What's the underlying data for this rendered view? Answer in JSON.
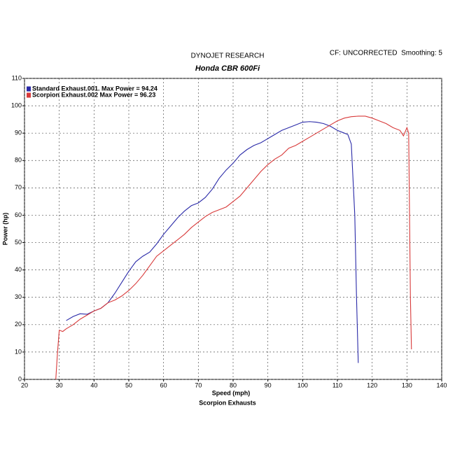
{
  "chart_data": {
    "type": "line",
    "title": "DYNOJET RESEARCH",
    "subtitle": "Honda CBR 600Fi",
    "annotation": "CF: UNCORRECTED  Smoothing: 5",
    "x_label": "Speed (mph)",
    "x_sublabel": "Scorpion Exhausts",
    "y_label": "Power (hp)",
    "xlim": [
      20,
      140
    ],
    "ylim": [
      0,
      110
    ],
    "xticks": [
      20,
      30,
      40,
      50,
      60,
      70,
      80,
      90,
      100,
      110,
      120,
      130,
      140
    ],
    "yticks": [
      0,
      10,
      20,
      30,
      40,
      50,
      60,
      70,
      80,
      90,
      100,
      110
    ],
    "grid": true,
    "legend": "top-left",
    "series": [
      {
        "name": "Standard Exhaust.001. Max Power = 94.24",
        "color": "#2a2aa8",
        "x": [
          32,
          34,
          36,
          38,
          40,
          42,
          44,
          46,
          48,
          50,
          52,
          54,
          56,
          58,
          60,
          62,
          64,
          66,
          68,
          70,
          72,
          74,
          76,
          78,
          80,
          82,
          84,
          86,
          88,
          90,
          92,
          94,
          96,
          98,
          100,
          102,
          104,
          106,
          108,
          110,
          112,
          113,
          114,
          115,
          115.5,
          116
        ],
        "values": [
          21.5,
          23,
          24,
          23.8,
          25,
          26,
          28,
          31.5,
          35.5,
          39.5,
          43,
          45,
          46.5,
          49.5,
          53,
          56,
          59,
          61.5,
          63.5,
          64.5,
          66.5,
          69.5,
          73.5,
          76.5,
          79,
          82,
          84,
          85.5,
          86.5,
          88,
          89.5,
          91,
          92,
          93,
          94,
          94.2,
          94,
          93.5,
          92.5,
          91,
          90,
          89.5,
          86,
          60,
          30,
          6
        ]
      },
      {
        "name": "Scorpion Exhaust.002 Max Power = 96.23",
        "color": "#d83a3a",
        "x": [
          29,
          29.5,
          30,
          31,
          32,
          34,
          36,
          38,
          40,
          42,
          44,
          46,
          48,
          50,
          52,
          54,
          56,
          58,
          60,
          62,
          64,
          66,
          68,
          70,
          72,
          74,
          76,
          78,
          80,
          82,
          84,
          86,
          88,
          90,
          92,
          94,
          96,
          98,
          100,
          102,
          104,
          106,
          108,
          110,
          112,
          114,
          116,
          118,
          120,
          122,
          124,
          126,
          128,
          129,
          130,
          130.5,
          131,
          131.3
        ],
        "values": [
          0,
          10,
          18,
          17.5,
          18.5,
          20,
          22,
          23.5,
          25,
          26,
          28,
          29,
          30.5,
          32.5,
          35,
          38,
          41.5,
          45,
          47,
          49,
          51,
          53,
          55.5,
          57.5,
          59.5,
          61,
          62,
          63,
          65,
          67,
          70,
          73,
          76,
          78.5,
          80.5,
          82,
          84.5,
          85.5,
          87,
          88.5,
          90,
          91.5,
          93,
          94.5,
          95.5,
          96,
          96.2,
          96.2,
          95.5,
          94.5,
          93.5,
          92,
          91,
          89,
          92,
          90,
          30,
          11
        ]
      }
    ]
  }
}
